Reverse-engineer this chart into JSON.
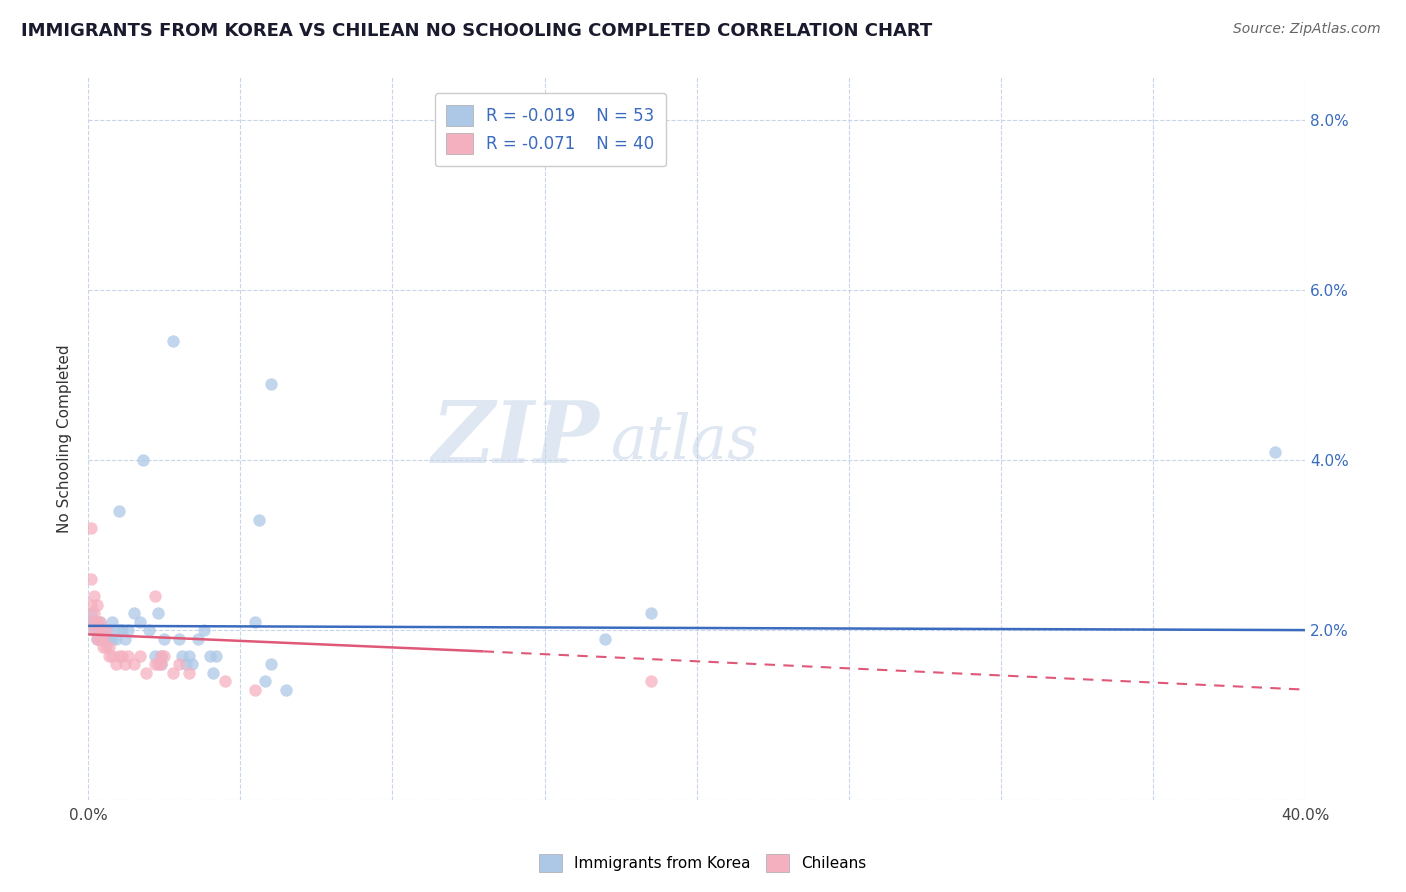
{
  "title": "IMMIGRANTS FROM KOREA VS CHILEAN NO SCHOOLING COMPLETED CORRELATION CHART",
  "source": "Source: ZipAtlas.com",
  "ylabel": "No Schooling Completed",
  "xlim": [
    0.0,
    0.4
  ],
  "ylim": [
    0.0,
    0.085
  ],
  "xticks": [
    0.0,
    0.05,
    0.1,
    0.15,
    0.2,
    0.25,
    0.3,
    0.35,
    0.4
  ],
  "yticks": [
    0.0,
    0.02,
    0.04,
    0.06,
    0.08
  ],
  "legend_r1": "R = -0.019",
  "legend_n1": "N = 53",
  "legend_r2": "R = -0.071",
  "legend_n2": "N = 40",
  "korea_color": "#adc8e6",
  "chile_color": "#f5b0c0",
  "korea_line_color": "#3a6bbf",
  "chile_line_color": "#e05878",
  "watermark_zip": "ZIP",
  "watermark_atlas": "atlas",
  "korea_line": [
    [
      0.0,
      0.0205
    ],
    [
      0.4,
      0.02
    ]
  ],
  "chile_line": [
    [
      0.0,
      0.0195
    ],
    [
      0.4,
      0.0145
    ]
  ],
  "chile_dash_line": [
    [
      0.13,
      0.0175
    ],
    [
      0.4,
      0.013
    ]
  ],
  "korea_scatter": [
    [
      0.001,
      0.021
    ],
    [
      0.001,
      0.022
    ],
    [
      0.002,
      0.021
    ],
    [
      0.002,
      0.02
    ],
    [
      0.003,
      0.021
    ],
    [
      0.003,
      0.02
    ],
    [
      0.003,
      0.019
    ],
    [
      0.004,
      0.021
    ],
    [
      0.004,
      0.02
    ],
    [
      0.004,
      0.019
    ],
    [
      0.005,
      0.02
    ],
    [
      0.005,
      0.019
    ],
    [
      0.006,
      0.02
    ],
    [
      0.006,
      0.019
    ],
    [
      0.007,
      0.02
    ],
    [
      0.007,
      0.019
    ],
    [
      0.008,
      0.021
    ],
    [
      0.008,
      0.019
    ],
    [
      0.009,
      0.019
    ],
    [
      0.01,
      0.02
    ],
    [
      0.01,
      0.034
    ],
    [
      0.011,
      0.02
    ],
    [
      0.012,
      0.019
    ],
    [
      0.013,
      0.02
    ],
    [
      0.015,
      0.022
    ],
    [
      0.017,
      0.021
    ],
    [
      0.018,
      0.04
    ],
    [
      0.02,
      0.02
    ],
    [
      0.022,
      0.017
    ],
    [
      0.023,
      0.022
    ],
    [
      0.024,
      0.016
    ],
    [
      0.024,
      0.017
    ],
    [
      0.025,
      0.019
    ],
    [
      0.028,
      0.054
    ],
    [
      0.03,
      0.019
    ],
    [
      0.031,
      0.017
    ],
    [
      0.032,
      0.016
    ],
    [
      0.033,
      0.017
    ],
    [
      0.034,
      0.016
    ],
    [
      0.036,
      0.019
    ],
    [
      0.038,
      0.02
    ],
    [
      0.04,
      0.017
    ],
    [
      0.041,
      0.015
    ],
    [
      0.042,
      0.017
    ],
    [
      0.055,
      0.021
    ],
    [
      0.056,
      0.033
    ],
    [
      0.058,
      0.014
    ],
    [
      0.06,
      0.016
    ],
    [
      0.06,
      0.049
    ],
    [
      0.065,
      0.013
    ],
    [
      0.17,
      0.019
    ],
    [
      0.185,
      0.022
    ],
    [
      0.39,
      0.041
    ]
  ],
  "chile_scatter": [
    [
      0.001,
      0.032
    ],
    [
      0.001,
      0.023
    ],
    [
      0.001,
      0.021
    ],
    [
      0.001,
      0.026
    ],
    [
      0.002,
      0.02
    ],
    [
      0.002,
      0.022
    ],
    [
      0.002,
      0.024
    ],
    [
      0.003,
      0.019
    ],
    [
      0.003,
      0.021
    ],
    [
      0.003,
      0.023
    ],
    [
      0.004,
      0.019
    ],
    [
      0.004,
      0.02
    ],
    [
      0.004,
      0.021
    ],
    [
      0.005,
      0.018
    ],
    [
      0.005,
      0.019
    ],
    [
      0.006,
      0.018
    ],
    [
      0.006,
      0.02
    ],
    [
      0.007,
      0.017
    ],
    [
      0.007,
      0.018
    ],
    [
      0.008,
      0.017
    ],
    [
      0.009,
      0.016
    ],
    [
      0.01,
      0.017
    ],
    [
      0.011,
      0.017
    ],
    [
      0.012,
      0.016
    ],
    [
      0.013,
      0.017
    ],
    [
      0.015,
      0.016
    ],
    [
      0.017,
      0.017
    ],
    [
      0.019,
      0.015
    ],
    [
      0.022,
      0.024
    ],
    [
      0.022,
      0.016
    ],
    [
      0.023,
      0.016
    ],
    [
      0.024,
      0.017
    ],
    [
      0.024,
      0.016
    ],
    [
      0.025,
      0.017
    ],
    [
      0.028,
      0.015
    ],
    [
      0.03,
      0.016
    ],
    [
      0.033,
      0.015
    ],
    [
      0.045,
      0.014
    ],
    [
      0.055,
      0.013
    ],
    [
      0.185,
      0.014
    ]
  ]
}
